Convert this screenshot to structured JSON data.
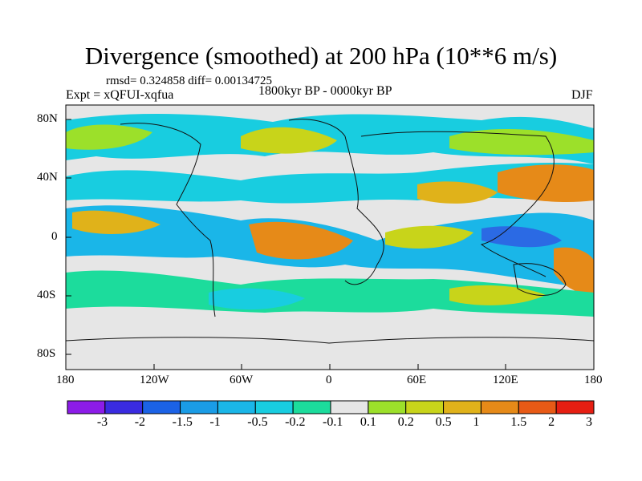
{
  "title": "Divergence (smoothed) at 200 hPa (10**6 m/s)",
  "stats": "rmsd= 0.324858 diff= 0.00134725",
  "experiment": "Expt = xQFUI-xqfua",
  "period": "1800kyr BP - 0000kyr BP",
  "season": "DJF",
  "axes": {
    "y_ticks": [
      "80N",
      "40N",
      "0",
      "40S",
      "80S"
    ],
    "x_ticks": [
      "180",
      "120W",
      "60W",
      "0",
      "60E",
      "120E",
      "180"
    ]
  },
  "colorbar": {
    "labels": [
      "-3",
      "-2",
      "-1.5",
      "-1",
      "-0.5",
      "-0.2",
      "-0.1",
      "0.1",
      "0.2",
      "0.5",
      "1",
      "1.5",
      "2",
      "3"
    ],
    "colors": [
      "#8c1ce8",
      "#3a2be0",
      "#1b62e6",
      "#1a9ce6",
      "#1ab6e8",
      "#18cde0",
      "#1cdc9c",
      "#e6e6e6",
      "#9ce02a",
      "#c8d41a",
      "#e0b21a",
      "#e68a18",
      "#e85a16",
      "#e61e12"
    ]
  }
}
